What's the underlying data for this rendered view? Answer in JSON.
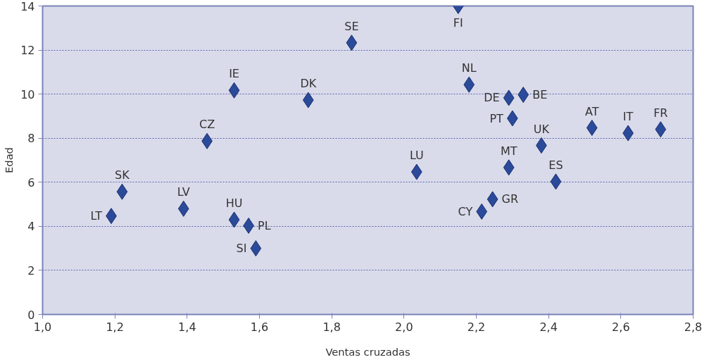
{
  "chart_data": {
    "type": "scatter",
    "xlabel": "Ventas cruzadas",
    "ylabel": "Edad",
    "x": [
      2.15,
      1.855,
      1.53,
      1.735,
      1.455,
      1.22,
      1.19,
      1.39,
      1.53,
      1.57,
      1.59,
      2.035,
      2.18,
      2.29,
      2.33,
      2.3,
      2.38,
      2.29,
      2.42,
      2.245,
      2.215,
      2.52,
      2.62,
      2.71
    ],
    "values": [
      14.0,
      12.33,
      10.17,
      9.73,
      7.87,
      5.57,
      4.47,
      4.8,
      4.3,
      4.03,
      3.0,
      6.47,
      10.43,
      9.83,
      9.97,
      8.9,
      7.67,
      6.67,
      6.03,
      5.23,
      4.67,
      8.47,
      8.23,
      8.4
    ],
    "color": "#2b4a9a",
    "marker": "diamond",
    "grid": "y",
    "xlim": [
      1.0,
      2.8
    ],
    "xticks": [
      {
        "value": 1.0,
        "label": "1,0"
      },
      {
        "value": 1.2,
        "label": "1,2"
      },
      {
        "value": 1.4,
        "label": "1,4"
      },
      {
        "value": 1.6,
        "label": "1,6"
      },
      {
        "value": 1.8,
        "label": "1,8"
      },
      {
        "value": 2.0,
        "label": "2,0"
      },
      {
        "value": 2.2,
        "label": "2,2"
      },
      {
        "value": 2.4,
        "label": "2,4"
      },
      {
        "value": 2.6,
        "label": "2,6"
      },
      {
        "value": 2.8,
        "label": "2,8"
      }
    ],
    "ylim": [
      0,
      14
    ],
    "yticks": [
      0,
      2,
      4,
      6,
      8,
      10,
      12,
      14
    ],
    "annotations": [
      {
        "text": "FI",
        "x": 2.15,
        "y": 14.0
      },
      {
        "text": "SE",
        "x": 1.855,
        "y": 12.33
      },
      {
        "text": "IE",
        "x": 1.53,
        "y": 10.17
      },
      {
        "text": "DK",
        "x": 1.735,
        "y": 9.73
      },
      {
        "text": "CZ",
        "x": 1.455,
        "y": 7.87
      },
      {
        "text": "SK",
        "x": 1.22,
        "y": 5.57
      },
      {
        "text": "LT",
        "x": 1.19,
        "y": 4.47
      },
      {
        "text": "LV",
        "x": 1.39,
        "y": 4.8
      },
      {
        "text": "HU",
        "x": 1.53,
        "y": 4.3
      },
      {
        "text": "PL",
        "x": 1.57,
        "y": 4.03
      },
      {
        "text": "SI",
        "x": 1.59,
        "y": 3.0
      },
      {
        "text": "LU",
        "x": 2.035,
        "y": 6.47
      },
      {
        "text": "NL",
        "x": 2.18,
        "y": 10.43
      },
      {
        "text": "DE",
        "x": 2.29,
        "y": 9.83
      },
      {
        "text": "BE",
        "x": 2.33,
        "y": 9.97
      },
      {
        "text": "PT",
        "x": 2.3,
        "y": 8.9
      },
      {
        "text": "UK",
        "x": 2.38,
        "y": 7.67
      },
      {
        "text": "MT",
        "x": 2.29,
        "y": 6.67
      },
      {
        "text": "ES",
        "x": 2.42,
        "y": 6.03
      },
      {
        "text": "GR",
        "x": 2.245,
        "y": 5.23
      },
      {
        "text": "CY",
        "x": 2.215,
        "y": 4.67
      },
      {
        "text": "AT",
        "x": 2.52,
        "y": 8.47
      },
      {
        "text": "IT",
        "x": 2.62,
        "y": 8.23
      },
      {
        "text": "FR",
        "x": 2.71,
        "y": 8.4
      }
    ]
  }
}
